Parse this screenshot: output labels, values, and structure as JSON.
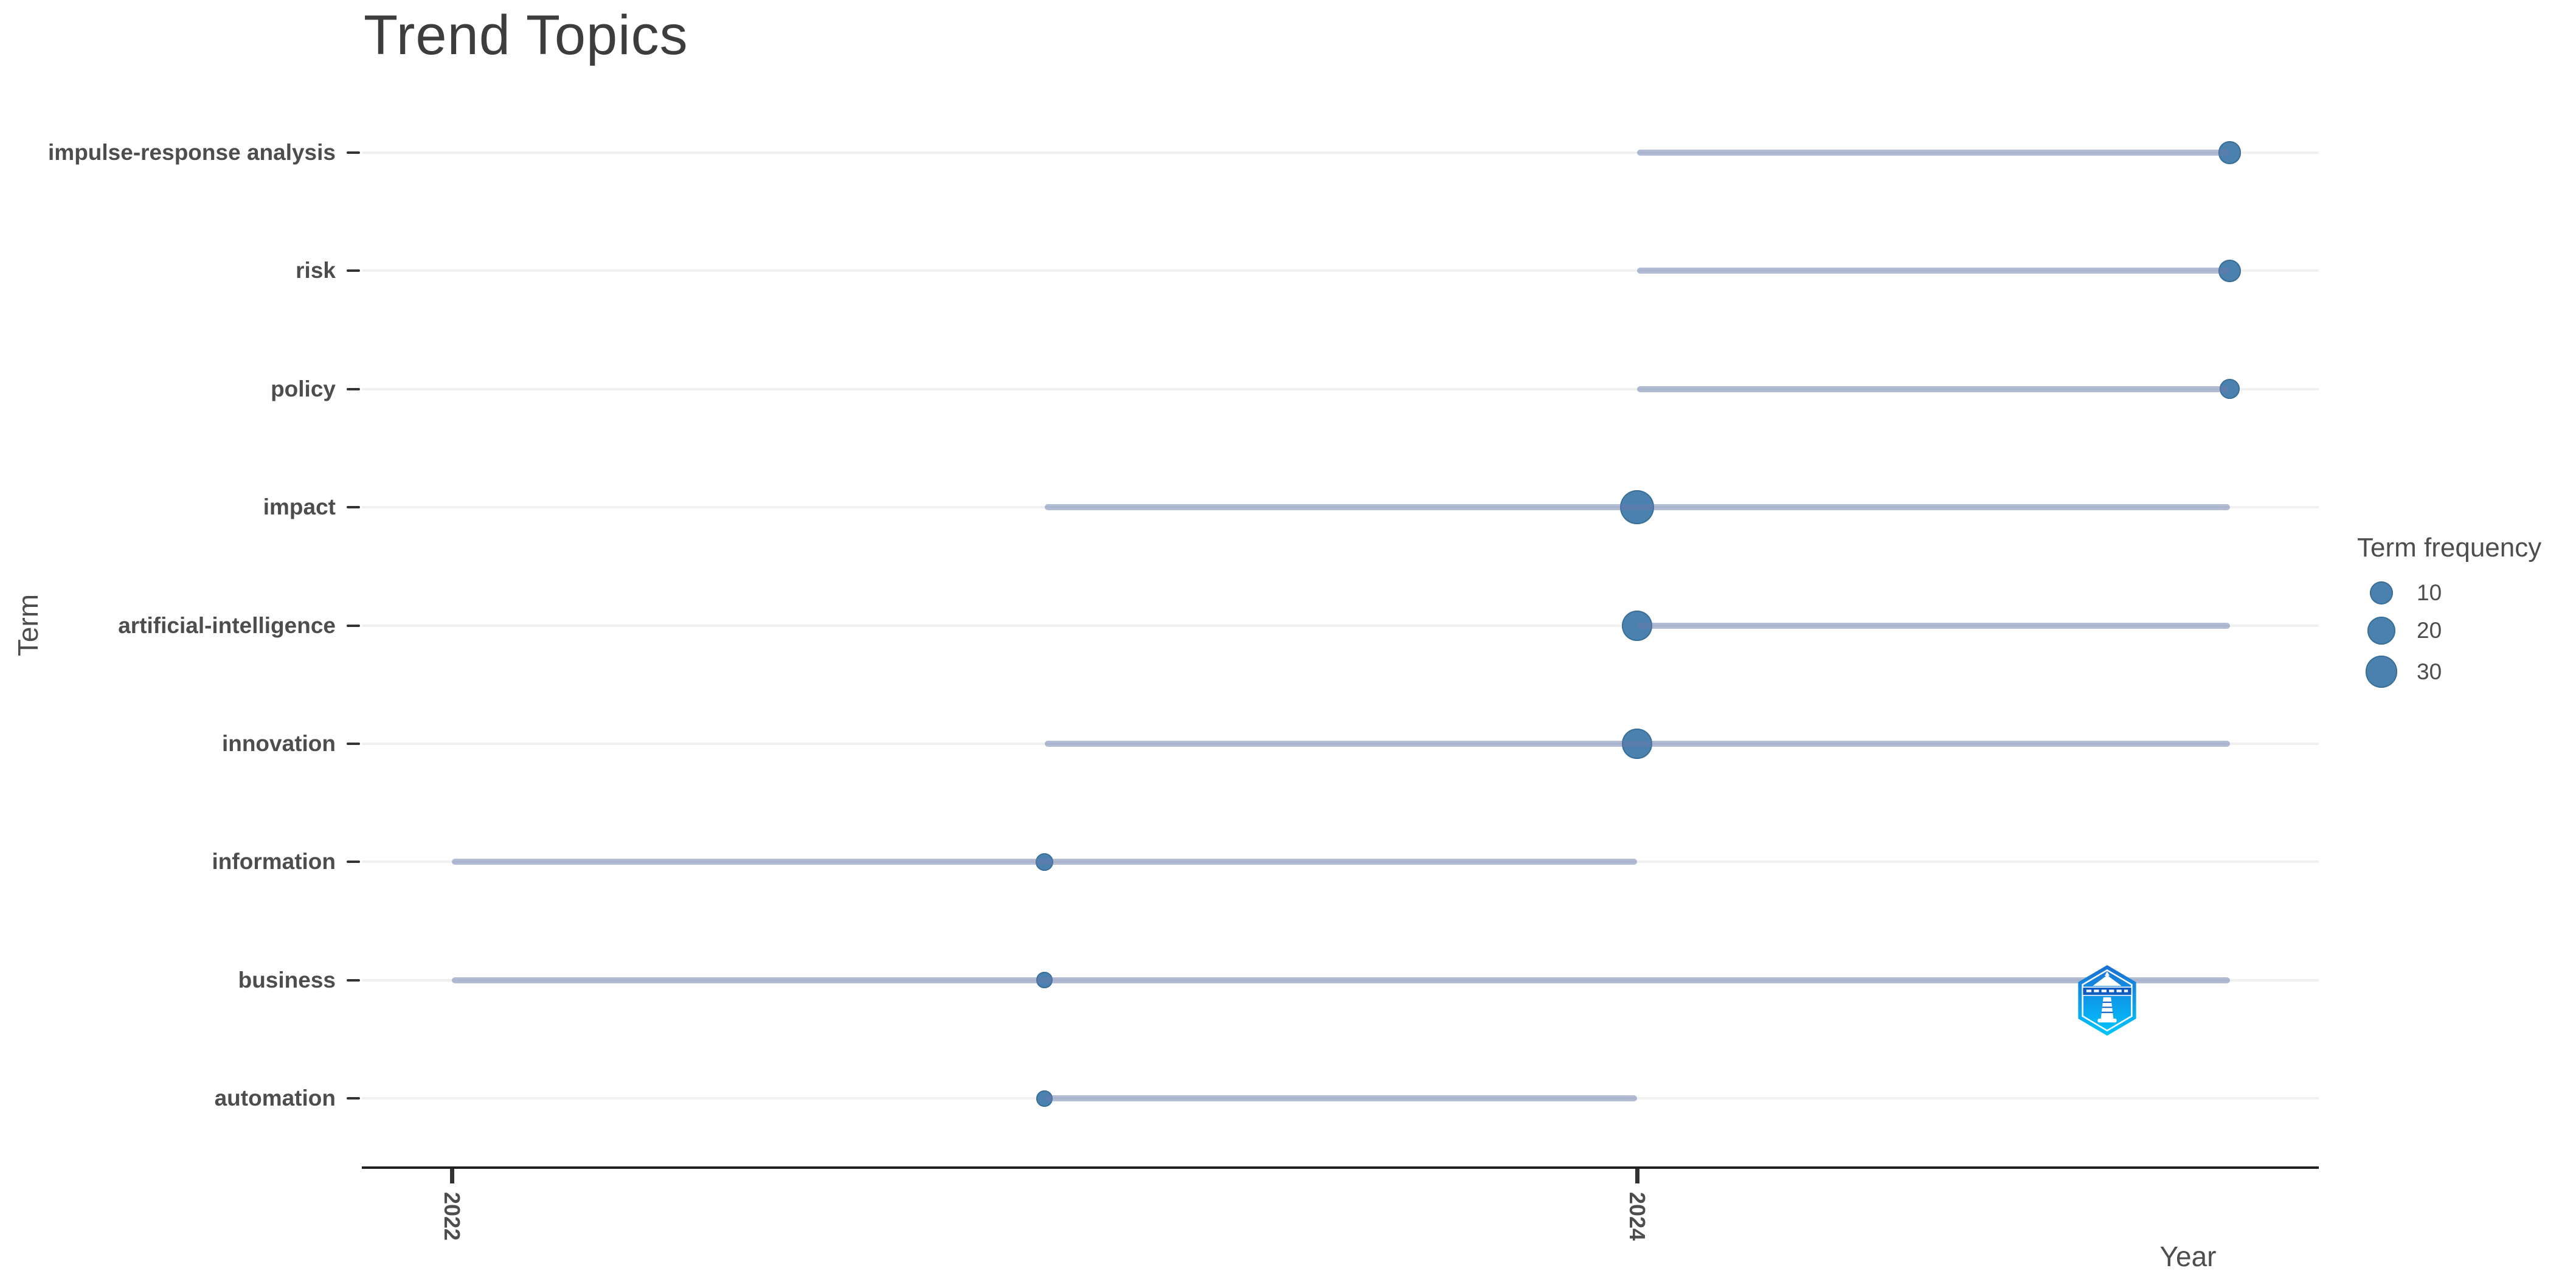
{
  "chart_data": {
    "type": "scatter",
    "variant": "trend-topics-lollipop",
    "title": "Trend Topics",
    "xlabel": "Year",
    "ylabel": "Term",
    "x_ticks": [
      "2022",
      "2024"
    ],
    "x_range": [
      2021.85,
      2025.15
    ],
    "grid": "faint-horizontal-rows-only",
    "legend": {
      "title": "Term frequency",
      "breaks": [
        10,
        20,
        30
      ],
      "position": "right"
    },
    "terms": [
      {
        "term": "impulse-response analysis",
        "year_start": 2024,
        "year_peak": 2025,
        "year_end": 2025,
        "freq": 10
      },
      {
        "term": "risk",
        "year_start": 2024,
        "year_peak": 2025,
        "year_end": 2025,
        "freq": 9
      },
      {
        "term": "policy",
        "year_start": 2024,
        "year_peak": 2025,
        "year_end": 2025,
        "freq": 6
      },
      {
        "term": "impact",
        "year_start": 2023,
        "year_peak": 2024,
        "year_end": 2025,
        "freq": 35
      },
      {
        "term": "artificial-intelligence",
        "year_start": 2024,
        "year_peak": 2024,
        "year_end": 2025,
        "freq": 25
      },
      {
        "term": "innovation",
        "year_start": 2023,
        "year_peak": 2024,
        "year_end": 2025,
        "freq": 25
      },
      {
        "term": "information",
        "year_start": 2022,
        "year_peak": 2023,
        "year_end": 2024,
        "freq": 3
      },
      {
        "term": "business",
        "year_start": 2022,
        "year_peak": 2023,
        "year_end": 2025,
        "freq": 2
      },
      {
        "term": "automation",
        "year_start": 2023,
        "year_peak": 2023,
        "year_end": 2024,
        "freq": 2
      }
    ]
  },
  "colors": {
    "dot": "#4A81AE",
    "dot_edge": "#3A6F97",
    "segment_overlay": "rgba(104,122,172,0.5)",
    "gridline": "#F0F0F0",
    "axis_line": "#1F1F1F",
    "tick": "#333333",
    "label_text": "#4D4D4D",
    "title_text": "#3D3D3D",
    "logo_top": "#1B6FD2",
    "logo_bottom": "#00C6FF"
  },
  "icons": {
    "logo": "biblioshiny-hexagon-lighthouse-logo"
  }
}
